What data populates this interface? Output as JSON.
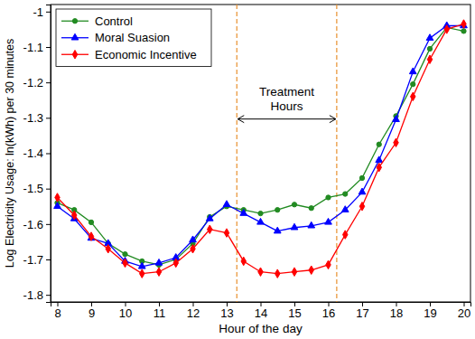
{
  "chart_data": {
    "type": "line",
    "x_label": "Hour of the day",
    "y_label": "Log Electricity Usage: ln(kWh) per 30 minutes",
    "x": [
      8,
      8.5,
      9,
      9.5,
      10,
      10.5,
      11,
      11.5,
      12,
      12.5,
      13,
      13.5,
      14,
      14.5,
      15,
      15.5,
      16,
      16.5,
      17,
      17.5,
      18,
      18.5,
      19,
      19.5,
      20
    ],
    "series": [
      {
        "name": "Control",
        "color": "#228b22",
        "marker": "circle",
        "values": [
          -1.54,
          -1.56,
          -1.595,
          -1.655,
          -1.685,
          -1.705,
          -1.715,
          -1.7,
          -1.655,
          -1.58,
          -1.55,
          -1.56,
          -1.57,
          -1.56,
          -1.545,
          -1.555,
          -1.525,
          -1.515,
          -1.47,
          -1.375,
          -1.295,
          -1.205,
          -1.105,
          -1.045,
          -1.055
        ]
      },
      {
        "name": "Moral Suasion",
        "color": "#0000ff",
        "marker": "triangle",
        "values": [
          -1.55,
          -1.585,
          -1.64,
          -1.655,
          -1.705,
          -1.72,
          -1.71,
          -1.695,
          -1.645,
          -1.585,
          -1.545,
          -1.57,
          -1.595,
          -1.62,
          -1.61,
          -1.605,
          -1.595,
          -1.56,
          -1.51,
          -1.42,
          -1.305,
          -1.17,
          -1.075,
          -1.04,
          -1.04
        ]
      },
      {
        "name": "Economic Incentive",
        "color": "#ff0000",
        "marker": "diamond",
        "values": [
          -1.525,
          -1.575,
          -1.635,
          -1.67,
          -1.71,
          -1.74,
          -1.735,
          -1.71,
          -1.67,
          -1.615,
          -1.625,
          -1.705,
          -1.735,
          -1.74,
          -1.735,
          -1.73,
          -1.715,
          -1.63,
          -1.55,
          -1.44,
          -1.37,
          -1.24,
          -1.135,
          -1.05,
          -1.035
        ]
      }
    ],
    "treatment_hours": [
      13.3,
      16.25
    ],
    "annotation": [
      "Treatment",
      "Hours"
    ],
    "xlim": [
      7.8,
      20.2
    ],
    "ylim": [
      -1.82,
      -0.98
    ],
    "xticks": [
      8,
      9,
      10,
      11,
      12,
      13,
      14,
      15,
      16,
      17,
      18,
      19,
      20
    ],
    "yticks": [
      -1.8,
      -1.7,
      -1.6,
      -1.5,
      -1.4,
      -1.3,
      -1.2,
      -1.1,
      -1
    ],
    "grid": false,
    "legend": "upper left"
  }
}
